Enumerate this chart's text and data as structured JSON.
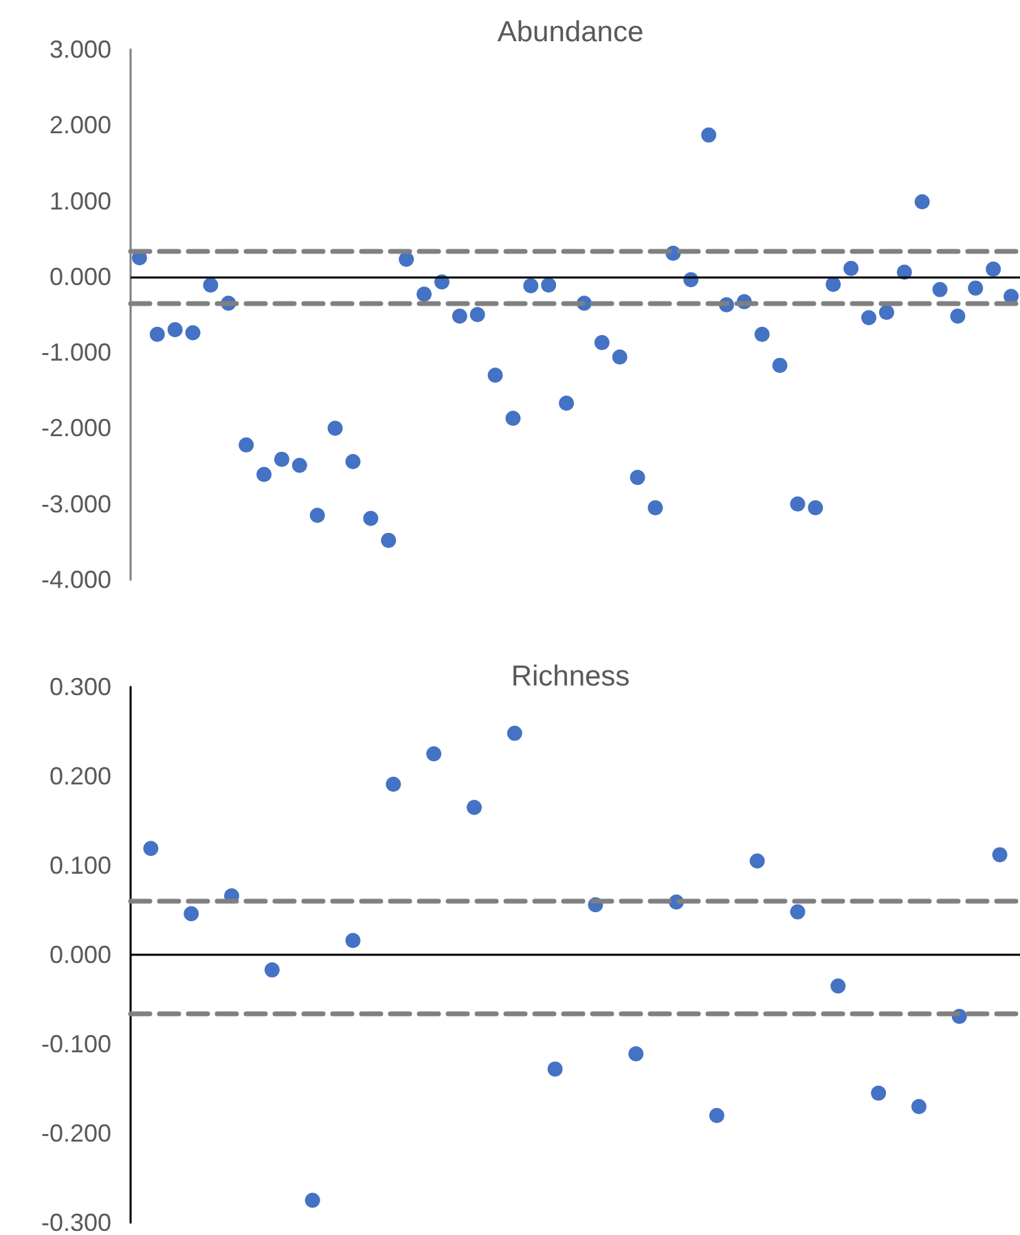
{
  "chart_data": [
    {
      "type": "scatter",
      "title": "Abundance",
      "marker": "circle",
      "tick_labels": "y",
      "grid": false,
      "categories": [
        null,
        null,
        null,
        null,
        null,
        null,
        null,
        null,
        null,
        null,
        null,
        null,
        null,
        null,
        null,
        null,
        null,
        null,
        null,
        null,
        null,
        null,
        null,
        null,
        null,
        null,
        null,
        null,
        null,
        null,
        null,
        null,
        null,
        null,
        null,
        null,
        null,
        null,
        null,
        null,
        null,
        null,
        null,
        null,
        null,
        null,
        null,
        null,
        null,
        null
      ],
      "series": [
        {
          "color": "#4472c4",
          "values": [
            0.25,
            -0.76,
            -0.7,
            -0.74,
            -0.11,
            -0.35,
            -2.22,
            -2.61,
            -2.41,
            -2.49,
            -3.15,
            -2.0,
            -2.44,
            -3.19,
            -3.48,
            0.23,
            -0.23,
            -0.07,
            -0.52,
            -0.5,
            -1.3,
            -1.87,
            -0.12,
            -0.11,
            -1.67,
            -0.35,
            -0.87,
            -1.06,
            -2.65,
            -3.05,
            0.31,
            -0.04,
            1.87,
            -0.37,
            -0.33,
            -0.76,
            -1.17,
            -3.0,
            -3.05,
            -0.1,
            0.11,
            -0.54,
            -0.47,
            0.06,
            0.99,
            -0.17,
            -0.52,
            -0.15,
            0.1,
            -0.26
          ]
        }
      ],
      "ylim": [
        -4,
        3
      ],
      "yticks": [
        {
          "value": -4,
          "label": "-4.000"
        },
        {
          "value": -3,
          "label": "-3.000"
        },
        {
          "value": -2,
          "label": "-2.000"
        },
        {
          "value": -1,
          "label": "-1.000"
        },
        {
          "value": 0,
          "label": "0.000"
        },
        {
          "value": 1,
          "label": "1.000"
        },
        {
          "value": 2,
          "label": "2.000"
        },
        {
          "value": 3,
          "label": "3.000"
        }
      ],
      "ref_lines": [
        {
          "axis": "y",
          "value": 0,
          "color": "#000000",
          "line_style": "solid"
        },
        {
          "axis": "y",
          "value": 0.34,
          "color": "#808080",
          "line_style": "dashed"
        },
        {
          "axis": "y",
          "value": -0.35,
          "color": "#808080",
          "line_style": "dashed"
        }
      ]
    },
    {
      "type": "scatter",
      "title": "Richness",
      "marker": "circle",
      "tick_labels": "y",
      "grid": false,
      "categories": [
        null,
        null,
        null,
        null,
        null,
        null,
        null,
        null,
        null,
        null,
        null,
        null,
        null,
        null,
        null,
        null,
        null,
        null,
        null,
        null,
        null,
        null
      ],
      "series": [
        {
          "color": "#4472c4",
          "values": [
            0.119,
            0.046,
            0.066,
            -0.017,
            -0.275,
            0.016,
            0.191,
            0.225,
            0.165,
            0.248,
            -0.128,
            0.056,
            -0.111,
            0.059,
            -0.18,
            0.105,
            0.048,
            -0.035,
            -0.155,
            -0.17,
            -0.069,
            0.112
          ]
        }
      ],
      "ylim": [
        -0.3,
        0.3
      ],
      "yticks": [
        {
          "value": -0.3,
          "label": "-0.300"
        },
        {
          "value": -0.2,
          "label": "-0.200"
        },
        {
          "value": -0.1,
          "label": "-0.100"
        },
        {
          "value": 0,
          "label": "0.000"
        },
        {
          "value": 0.1,
          "label": "0.100"
        },
        {
          "value": 0.2,
          "label": "0.200"
        },
        {
          "value": 0.3,
          "label": "0.300"
        }
      ],
      "ref_lines": [
        {
          "axis": "y",
          "value": 0,
          "color": "#000000",
          "line_style": "solid"
        },
        {
          "axis": "y",
          "value": 0.06,
          "color": "#808080",
          "line_style": "dashed"
        },
        {
          "axis": "y",
          "value": -0.065,
          "color": "#808080",
          "line_style": "dashed"
        }
      ]
    }
  ]
}
